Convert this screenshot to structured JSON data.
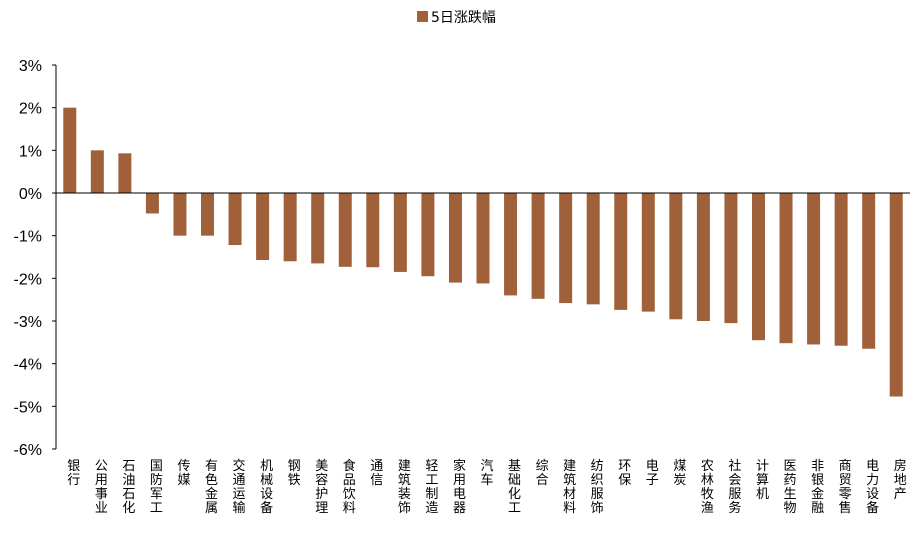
{
  "chart_data": {
    "type": "bar",
    "title": "",
    "xlabel": "",
    "ylabel": "",
    "ylim": [
      -6,
      3
    ],
    "yticks": [
      3,
      2,
      1,
      0,
      -1,
      -2,
      -3,
      -4,
      -5,
      -6
    ],
    "ytick_labels": [
      "3%",
      "2%",
      "1%",
      "0%",
      "-1%",
      "-2%",
      "-3%",
      "-4%",
      "-5%",
      "-6%"
    ],
    "grid": false,
    "legend_position": "top-center",
    "bar_color": "#A0613A",
    "categories": [
      "银行",
      "公用事业",
      "石油石化",
      "国防军工",
      "传媒",
      "有色金属",
      "交通运输",
      "机械设备",
      "钢铁",
      "美容护理",
      "食品饮料",
      "通信",
      "建筑装饰",
      "轻工制造",
      "家用电器",
      "汽车",
      "基础化工",
      "综合",
      "建筑材料",
      "纺织服饰",
      "环保",
      "电子",
      "煤炭",
      "农林牧渔",
      "社会服务",
      "计算机",
      "医药生物",
      "非银金融",
      "商贸零售",
      "电力设备",
      "房地产"
    ],
    "series": [
      {
        "name": "5日涨跌幅",
        "values": [
          2.0,
          1.0,
          0.93,
          -0.48,
          -1.0,
          -1.0,
          -1.22,
          -1.57,
          -1.6,
          -1.65,
          -1.73,
          -1.74,
          -1.85,
          -1.95,
          -2.1,
          -2.12,
          -2.4,
          -2.48,
          -2.58,
          -2.61,
          -2.74,
          -2.78,
          -2.96,
          -3.0,
          -3.05,
          -3.45,
          -3.52,
          -3.55,
          -3.58,
          -3.65,
          -4.77
        ]
      }
    ]
  }
}
